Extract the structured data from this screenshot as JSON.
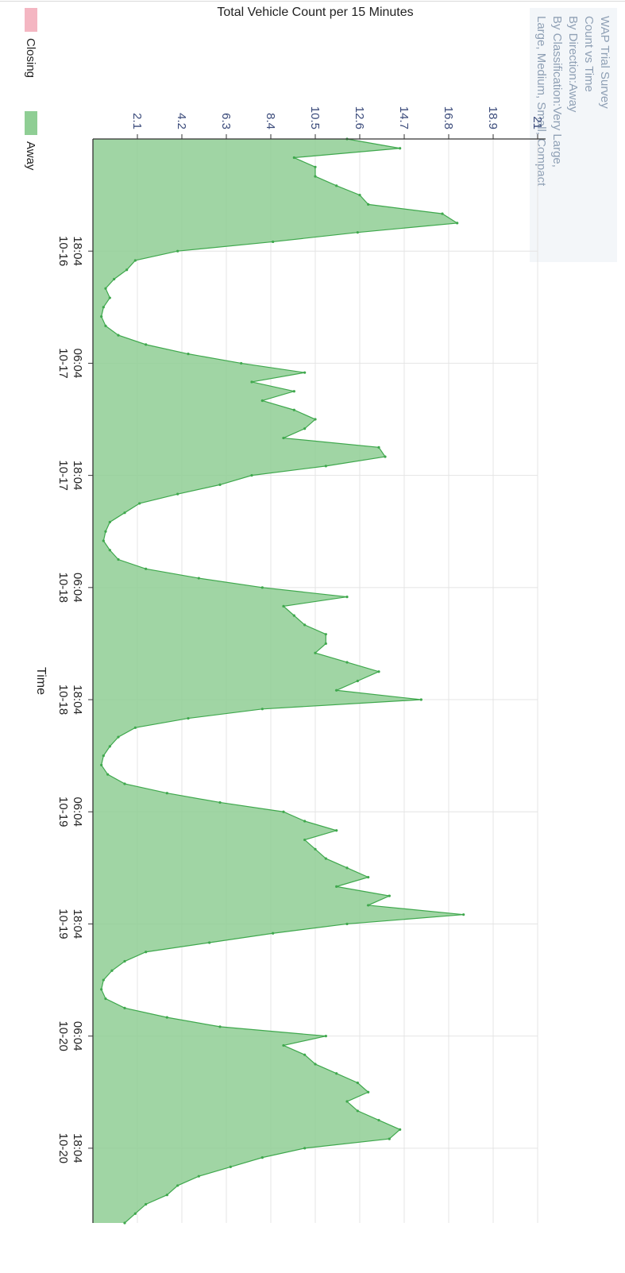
{
  "chart_data": {
    "type": "area",
    "title_lines": [
      "WAP Trial Survey",
      "Count vs Time",
      "By Direction:Away",
      "By Classification:Very Large,",
      "Large, Medium, Small, Compact"
    ],
    "ylabel": "Total Vehicle Count per 15 Minutes",
    "xlabel": "Time",
    "y_ticks": [
      "2.1",
      "4.2",
      "6.3",
      "8.4",
      "10.5",
      "12.6",
      "14.7",
      "16.8",
      "18.9",
      "21"
    ],
    "ylim": [
      0,
      21
    ],
    "x_ticks": [
      {
        "time": "18:04",
        "date": "10-16",
        "x": "2016-10-16T18:04"
      },
      {
        "time": "06:04",
        "date": "10-17",
        "x": "2016-10-17T06:04"
      },
      {
        "time": "18:04",
        "date": "10-17",
        "x": "2016-10-17T18:04"
      },
      {
        "time": "06:04",
        "date": "10-18",
        "x": "2016-10-18T06:04"
      },
      {
        "time": "18:04",
        "date": "10-18",
        "x": "2016-10-18T18:04"
      },
      {
        "time": "06:04",
        "date": "10-19",
        "x": "2016-10-19T06:04"
      },
      {
        "time": "18:04",
        "date": "10-19",
        "x": "2016-10-19T18:04"
      },
      {
        "time": "06:04",
        "date": "10-20",
        "x": "2016-10-20T06:04"
      },
      {
        "time": "18:04",
        "date": "10-20",
        "x": "2016-10-20T18:04"
      }
    ],
    "xlim": [
      "2016-10-16T06:04",
      "2016-10-21T02:04"
    ],
    "legend": [
      {
        "label": "Closing",
        "color": "#f4b6c2"
      },
      {
        "label": "Away",
        "color": "#8fce94"
      }
    ],
    "series": [
      {
        "name": "Away",
        "color": "#8fce94",
        "line_color": "#3fa84d",
        "x": [
          "2016-10-16T06:04",
          "2016-10-16T07:04",
          "2016-10-16T08:04",
          "2016-10-16T09:04",
          "2016-10-16T10:04",
          "2016-10-16T11:04",
          "2016-10-16T12:04",
          "2016-10-16T13:04",
          "2016-10-16T14:04",
          "2016-10-16T15:04",
          "2016-10-16T16:04",
          "2016-10-16T17:04",
          "2016-10-16T18:04",
          "2016-10-16T19:04",
          "2016-10-16T20:04",
          "2016-10-16T21:04",
          "2016-10-16T22:04",
          "2016-10-16T23:04",
          "2016-10-17T00:04",
          "2016-10-17T01:04",
          "2016-10-17T02:04",
          "2016-10-17T03:04",
          "2016-10-17T04:04",
          "2016-10-17T05:04",
          "2016-10-17T06:04",
          "2016-10-17T07:04",
          "2016-10-17T08:04",
          "2016-10-17T09:04",
          "2016-10-17T10:04",
          "2016-10-17T11:04",
          "2016-10-17T12:04",
          "2016-10-17T13:04",
          "2016-10-17T14:04",
          "2016-10-17T15:04",
          "2016-10-17T16:04",
          "2016-10-17T17:04",
          "2016-10-17T18:04",
          "2016-10-17T19:04",
          "2016-10-17T20:04",
          "2016-10-17T21:04",
          "2016-10-17T22:04",
          "2016-10-17T23:04",
          "2016-10-18T00:04",
          "2016-10-18T01:04",
          "2016-10-18T02:04",
          "2016-10-18T03:04",
          "2016-10-18T04:04",
          "2016-10-18T05:04",
          "2016-10-18T06:04",
          "2016-10-18T07:04",
          "2016-10-18T08:04",
          "2016-10-18T09:04",
          "2016-10-18T10:04",
          "2016-10-18T11:04",
          "2016-10-18T12:04",
          "2016-10-18T13:04",
          "2016-10-18T14:04",
          "2016-10-18T15:04",
          "2016-10-18T16:04",
          "2016-10-18T17:04",
          "2016-10-18T18:04",
          "2016-10-18T19:04",
          "2016-10-18T20:04",
          "2016-10-18T21:04",
          "2016-10-18T22:04",
          "2016-10-18T23:04",
          "2016-10-19T00:04",
          "2016-10-19T01:04",
          "2016-10-19T02:04",
          "2016-10-19T03:04",
          "2016-10-19T04:04",
          "2016-10-19T05:04",
          "2016-10-19T06:04",
          "2016-10-19T07:04",
          "2016-10-19T08:04",
          "2016-10-19T09:04",
          "2016-10-19T10:04",
          "2016-10-19T11:04",
          "2016-10-19T12:04",
          "2016-10-19T13:04",
          "2016-10-19T14:04",
          "2016-10-19T15:04",
          "2016-10-19T16:04",
          "2016-10-19T17:04",
          "2016-10-19T18:04",
          "2016-10-19T19:04",
          "2016-10-19T20:04",
          "2016-10-19T21:04",
          "2016-10-19T22:04",
          "2016-10-19T23:04",
          "2016-10-20T00:04",
          "2016-10-20T01:04",
          "2016-10-20T02:04",
          "2016-10-20T03:04",
          "2016-10-20T04:04",
          "2016-10-20T05:04",
          "2016-10-20T06:04",
          "2016-10-20T07:04",
          "2016-10-20T08:04",
          "2016-10-20T09:04",
          "2016-10-20T10:04",
          "2016-10-20T11:04",
          "2016-10-20T12:04",
          "2016-10-20T13:04",
          "2016-10-20T14:04",
          "2016-10-20T15:04",
          "2016-10-20T16:04",
          "2016-10-20T17:04",
          "2016-10-20T18:04",
          "2016-10-20T19:04",
          "2016-10-20T20:04",
          "2016-10-20T21:04",
          "2016-10-20T22:04",
          "2016-10-20T23:04",
          "2016-10-21T00:04",
          "2016-10-21T01:04",
          "2016-10-21T02:04"
        ],
        "values": [
          12.0,
          14.5,
          9.5,
          10.5,
          10.5,
          11.5,
          12.6,
          13.0,
          16.5,
          17.2,
          12.5,
          8.5,
          4.0,
          2.0,
          1.6,
          1.0,
          0.6,
          0.8,
          0.5,
          0.4,
          0.6,
          1.2,
          2.5,
          4.5,
          7.0,
          10.0,
          7.5,
          9.5,
          8.0,
          9.5,
          10.5,
          10.0,
          9.0,
          13.5,
          13.8,
          11.0,
          7.5,
          6.0,
          4.0,
          2.2,
          1.5,
          0.8,
          0.6,
          0.5,
          0.8,
          1.2,
          2.5,
          5.0,
          8.0,
          12.0,
          9.0,
          9.5,
          10.0,
          11.0,
          11.0,
          10.5,
          12.0,
          13.5,
          12.5,
          11.5,
          15.5,
          8.0,
          4.5,
          2.0,
          1.2,
          0.8,
          0.5,
          0.4,
          0.7,
          1.5,
          3.5,
          6.0,
          9.0,
          10.0,
          11.5,
          10.0,
          10.5,
          11.0,
          12.0,
          13.0,
          11.5,
          14.0,
          13.0,
          17.5,
          12.0,
          8.5,
          5.5,
          2.5,
          1.5,
          0.9,
          0.5,
          0.4,
          0.6,
          1.5,
          3.5,
          6.0,
          11.0,
          9.0,
          10.0,
          10.5,
          11.5,
          12.5,
          13.0,
          12.0,
          12.5,
          13.5,
          14.5,
          14.0,
          10.0,
          8.0,
          6.5,
          5.0,
          4.0,
          3.5,
          2.5,
          2.0,
          1.5
        ]
      },
      {
        "name": "Closing",
        "color": "#f4b6c2",
        "values": []
      }
    ],
    "grid": true,
    "legend_placement": "bottom-left",
    "orientation": "rotated-90"
  }
}
